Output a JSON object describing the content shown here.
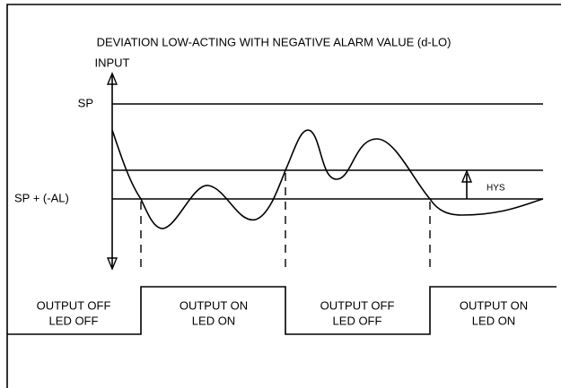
{
  "title": "DEVIATION LOW-ACTING WITH NEGATIVE ALARM VALUE (d-LO)",
  "axis_label": "INPUT",
  "levels": {
    "sp": "SP",
    "alarm": "SP + (-AL)",
    "hys": "HYS"
  },
  "states": [
    {
      "output": "OUTPUT OFF",
      "led": "LED OFF"
    },
    {
      "output": "OUTPUT ON",
      "led": "LED ON"
    },
    {
      "output": "OUTPUT OFF",
      "led": "LED OFF"
    },
    {
      "output": "OUTPUT ON",
      "led": "LED ON"
    }
  ]
}
